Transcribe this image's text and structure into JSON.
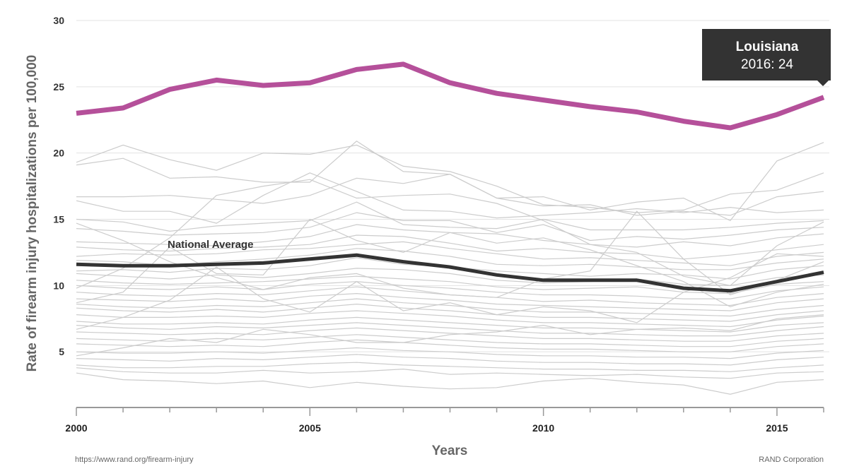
{
  "chart_data": {
    "type": "line",
    "xlabel": "Years",
    "ylabel": "Rate of firearm injury hospitalizations per 100,000",
    "x": [
      2000,
      2001,
      2002,
      2003,
      2004,
      2005,
      2006,
      2007,
      2008,
      2009,
      2010,
      2011,
      2012,
      2013,
      2014,
      2015,
      2016
    ],
    "xlim": [
      2000,
      2016
    ],
    "ylim": [
      0,
      30
    ],
    "x_ticks": [
      2000,
      2005,
      2010,
      2015
    ],
    "y_ticks": [
      5,
      10,
      15,
      20,
      25,
      30
    ],
    "grid": "horizontal",
    "highlight": {
      "name": "Louisiana",
      "color": "#b5509a",
      "values": [
        23.0,
        23.4,
        24.8,
        25.5,
        25.1,
        25.3,
        26.3,
        26.7,
        25.3,
        24.5,
        24.0,
        23.5,
        23.1,
        22.4,
        21.9,
        22.9,
        24.2
      ]
    },
    "national_average": {
      "name": "National Average",
      "label": "National Average",
      "color": "#333333",
      "values": [
        11.6,
        11.5,
        11.5,
        11.6,
        11.7,
        12.0,
        12.3,
        11.8,
        11.4,
        10.8,
        10.4,
        10.4,
        10.4,
        9.8,
        9.6,
        10.3,
        11.0
      ]
    },
    "background_series_color": "#cccccc",
    "background_series": [
      {
        "values": [
          19.1,
          19.6,
          18.1,
          18.2,
          17.8,
          17.8,
          20.9,
          18.6,
          18.4,
          16.6,
          16.7,
          15.7,
          16.3,
          16.6,
          14.9,
          19.4,
          20.8
        ]
      },
      {
        "values": [
          19.3,
          20.6,
          19.5,
          18.7,
          20.0,
          19.9,
          20.6,
          19.0,
          18.6,
          17.5,
          16.1,
          15.9,
          15.5,
          15.7,
          16.9,
          17.2,
          18.5
        ]
      },
      {
        "values": [
          16.7,
          16.7,
          16.8,
          16.5,
          16.2,
          16.8,
          18.1,
          17.7,
          18.4,
          16.6,
          16.0,
          16.1,
          15.3,
          15.6,
          15.3,
          16.7,
          17.1
        ]
      },
      {
        "values": [
          16.4,
          15.6,
          15.6,
          14.7,
          16.8,
          18.5,
          17.1,
          15.7,
          15.6,
          15.1,
          15.3,
          15.5,
          15.8,
          15.5,
          15.9,
          15.5,
          15.7
        ]
      },
      {
        "values": [
          15.0,
          14.8,
          14.1,
          14.5,
          14.7,
          14.9,
          16.3,
          14.6,
          14.4,
          14.3,
          15.0,
          14.2,
          14.2,
          14.2,
          14.4,
          14.7,
          14.9
        ]
      },
      {
        "values": [
          14.3,
          14.1,
          13.8,
          13.9,
          14.0,
          14.4,
          15.5,
          14.9,
          14.9,
          14.0,
          14.6,
          13.4,
          13.7,
          13.5,
          13.8,
          14.2,
          14.4
        ]
      },
      {
        "values": [
          13.3,
          13.2,
          13.1,
          13.0,
          13.3,
          13.7,
          14.6,
          14.2,
          14.0,
          13.9,
          13.4,
          13.1,
          12.9,
          13.3,
          13.0,
          13.6,
          13.9
        ]
      },
      {
        "values": [
          12.9,
          12.7,
          12.6,
          12.8,
          12.9,
          13.1,
          13.8,
          13.7,
          13.2,
          12.6,
          12.8,
          12.5,
          12.4,
          12.0,
          12.3,
          12.7,
          13.1
        ]
      },
      {
        "values": [
          12.2,
          12.4,
          12.3,
          12.4,
          12.7,
          12.8,
          13.1,
          13.3,
          12.8,
          12.4,
          12.0,
          12.1,
          11.9,
          11.7,
          11.5,
          12.2,
          12.5
        ]
      },
      {
        "values": [
          11.9,
          11.8,
          11.5,
          11.8,
          12.0,
          12.3,
          12.8,
          12.6,
          12.2,
          11.6,
          11.5,
          11.6,
          11.4,
          11.2,
          11.2,
          11.7,
          12.0
        ]
      },
      {
        "values": [
          11.1,
          11.2,
          11.0,
          11.3,
          11.2,
          11.5,
          12.1,
          11.6,
          11.4,
          11.1,
          10.9,
          10.7,
          10.9,
          10.8,
          10.5,
          11.2,
          11.5
        ]
      },
      {
        "values": [
          10.9,
          10.7,
          10.5,
          10.8,
          10.6,
          10.9,
          11.3,
          11.2,
          10.9,
          10.4,
          10.2,
          10.3,
          10.5,
          10.1,
          10.0,
          10.6,
          10.8
        ]
      },
      {
        "values": [
          10.4,
          10.2,
          10.1,
          10.2,
          10.3,
          10.5,
          10.7,
          10.5,
          10.3,
          9.9,
          9.7,
          9.8,
          9.9,
          9.5,
          9.4,
          10.1,
          10.3
        ]
      },
      {
        "values": [
          10.0,
          9.8,
          9.7,
          9.9,
          9.7,
          10.1,
          10.3,
          10.0,
          9.8,
          9.5,
          9.3,
          9.3,
          9.2,
          9.0,
          9.0,
          9.6,
          9.9
        ]
      },
      {
        "values": [
          9.5,
          9.3,
          9.2,
          9.4,
          9.3,
          9.6,
          9.9,
          9.6,
          9.3,
          9.1,
          8.8,
          8.9,
          8.7,
          8.6,
          8.5,
          9.1,
          9.4
        ]
      },
      {
        "values": [
          9.0,
          8.9,
          8.8,
          9.0,
          8.8,
          9.2,
          9.4,
          9.1,
          8.9,
          8.6,
          8.5,
          8.4,
          8.3,
          8.2,
          8.1,
          8.7,
          9.0
        ]
      },
      {
        "values": [
          8.6,
          8.4,
          8.3,
          8.5,
          8.4,
          8.7,
          9.0,
          8.7,
          8.5,
          8.2,
          8.0,
          8.0,
          7.9,
          7.8,
          7.7,
          8.2,
          8.5
        ]
      },
      {
        "values": [
          8.3,
          8.1,
          8.0,
          8.2,
          8.0,
          8.3,
          8.6,
          8.3,
          8.1,
          7.8,
          7.6,
          7.6,
          7.5,
          7.4,
          7.3,
          7.8,
          8.1
        ]
      },
      {
        "values": [
          7.8,
          7.6,
          7.6,
          7.7,
          7.6,
          7.9,
          8.1,
          7.9,
          7.7,
          7.4,
          7.2,
          7.2,
          7.1,
          7.0,
          6.9,
          7.4,
          7.7
        ]
      },
      {
        "values": [
          7.3,
          7.1,
          7.1,
          7.2,
          7.1,
          7.4,
          7.6,
          7.4,
          7.2,
          7.0,
          6.8,
          6.8,
          6.7,
          6.6,
          6.5,
          7.0,
          7.2
        ]
      },
      {
        "values": [
          7.0,
          6.8,
          6.7,
          6.9,
          6.8,
          7.0,
          7.2,
          7.0,
          6.8,
          6.6,
          6.4,
          6.4,
          6.3,
          6.2,
          6.2,
          6.6,
          6.9
        ]
      },
      {
        "values": [
          6.5,
          6.4,
          6.3,
          6.4,
          6.3,
          6.6,
          6.8,
          6.6,
          6.4,
          6.2,
          6.0,
          6.0,
          5.9,
          5.8,
          5.8,
          6.2,
          6.4
        ]
      },
      {
        "values": [
          6.0,
          5.9,
          5.8,
          6.0,
          5.9,
          6.1,
          6.3,
          6.1,
          5.9,
          5.7,
          5.6,
          5.6,
          5.5,
          5.4,
          5.4,
          5.8,
          6.0
        ]
      },
      {
        "values": [
          5.6,
          5.5,
          5.4,
          5.5,
          5.4,
          5.7,
          5.9,
          5.7,
          5.5,
          5.3,
          5.2,
          5.2,
          5.1,
          5.0,
          5.0,
          5.4,
          5.6
        ]
      },
      {
        "values": [
          5.0,
          4.9,
          4.9,
          5.0,
          4.9,
          5.1,
          5.3,
          5.1,
          5.0,
          4.8,
          4.7,
          4.7,
          4.6,
          4.6,
          4.5,
          4.9,
          5.1
        ]
      },
      {
        "values": [
          4.5,
          4.4,
          4.3,
          4.5,
          4.4,
          4.6,
          4.8,
          4.6,
          4.5,
          4.3,
          4.2,
          4.2,
          4.1,
          4.1,
          4.0,
          4.4,
          4.6
        ]
      },
      {
        "values": [
          4.0,
          3.8,
          3.8,
          3.9,
          3.9,
          4.1,
          4.2,
          4.0,
          3.9,
          3.8,
          3.7,
          3.7,
          3.6,
          3.6,
          3.5,
          3.8,
          4.0
        ]
      },
      {
        "values": [
          3.4,
          2.9,
          2.8,
          2.6,
          2.8,
          2.3,
          2.7,
          2.4,
          2.2,
          2.3,
          2.8,
          3.0,
          2.7,
          2.5,
          1.8,
          2.7,
          2.9
        ]
      },
      {
        "values": [
          3.8,
          3.5,
          3.4,
          3.4,
          3.6,
          3.4,
          3.5,
          3.7,
          3.3,
          3.4,
          3.3,
          3.2,
          3.3,
          3.1,
          3.0,
          3.4,
          3.5
        ]
      },
      {
        "values": [
          9.8,
          11.3,
          13.6,
          16.8,
          17.5,
          18.0,
          16.6,
          16.8,
          16.9,
          16.2,
          14.9,
          13.1,
          12.5,
          10.7,
          10.0,
          13.0,
          14.8
        ]
      },
      {
        "values": [
          14.7,
          13.4,
          11.8,
          10.6,
          9.7,
          10.6,
          10.9,
          9.8,
          9.3,
          9.1,
          10.5,
          11.1,
          15.6,
          12.0,
          9.3,
          10.4,
          11.8
        ]
      },
      {
        "values": [
          6.7,
          7.6,
          8.9,
          11.4,
          9.0,
          8.0,
          10.3,
          8.1,
          8.7,
          7.8,
          8.4,
          8.1,
          7.2,
          9.5,
          10.6,
          12.4,
          12.2
        ]
      },
      {
        "values": [
          8.7,
          9.5,
          12.9,
          10.9,
          10.8,
          15.0,
          13.4,
          12.5,
          14.0,
          13.2,
          13.6,
          12.7,
          11.5,
          10.3,
          8.4,
          9.5,
          10.1
        ]
      },
      {
        "values": [
          4.7,
          5.3,
          6.0,
          5.7,
          6.7,
          6.3,
          5.7,
          5.7,
          6.3,
          6.5,
          7.0,
          6.3,
          6.7,
          6.8,
          6.6,
          7.5,
          7.8
        ]
      }
    ]
  },
  "tooltip": {
    "title": "Louisiana",
    "value_text": "2016: 24"
  },
  "footer": {
    "source_url": "https://www.rand.org/firearm-injury",
    "credit": "RAND Corporation"
  }
}
